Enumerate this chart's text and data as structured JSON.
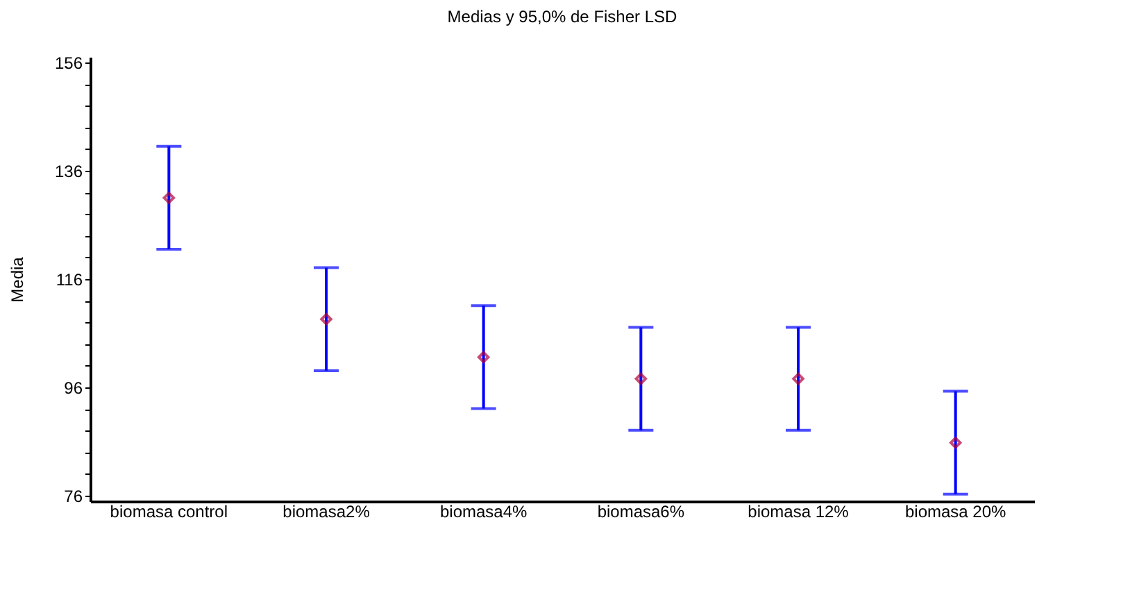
{
  "chart_data": {
    "type": "scatter",
    "title": "Medias y 95,0% de Fisher LSD",
    "ylabel": "Media",
    "categories": [
      "biomasa control",
      "biomasa2%",
      "biomasa4%",
      "biomasa6%",
      "biomasa 12%",
      "biomasa 20%"
    ],
    "series": [
      {
        "color": "#b0003a",
        "values": [
          131.0,
          108.6,
          101.6,
          97.6,
          97.6,
          85.8
        ],
        "errors": [
          9.5,
          9.5,
          9.5,
          9.5,
          9.5,
          9.5
        ]
      }
    ],
    "marker": "diamond",
    "grid": false,
    "ylim": [
      75,
      157
    ],
    "yticks": [
      76,
      {
        "value": 80,
        "label": null
      },
      {
        "value": 84,
        "label": null
      },
      {
        "value": 88,
        "label": null
      },
      {
        "value": 92,
        "label": null
      },
      96,
      {
        "value": 100,
        "label": null
      },
      {
        "value": 104,
        "label": null
      },
      {
        "value": 108,
        "label": null
      },
      {
        "value": 112,
        "label": null
      },
      116,
      {
        "value": 120,
        "label": null
      },
      {
        "value": 124,
        "label": null
      },
      {
        "value": 128,
        "label": null
      },
      {
        "value": 132,
        "label": null
      },
      136,
      {
        "value": 140,
        "label": null
      },
      {
        "value": 144,
        "label": null
      },
      {
        "value": 148,
        "label": null
      },
      {
        "value": 152,
        "label": null
      },
      156
    ]
  }
}
